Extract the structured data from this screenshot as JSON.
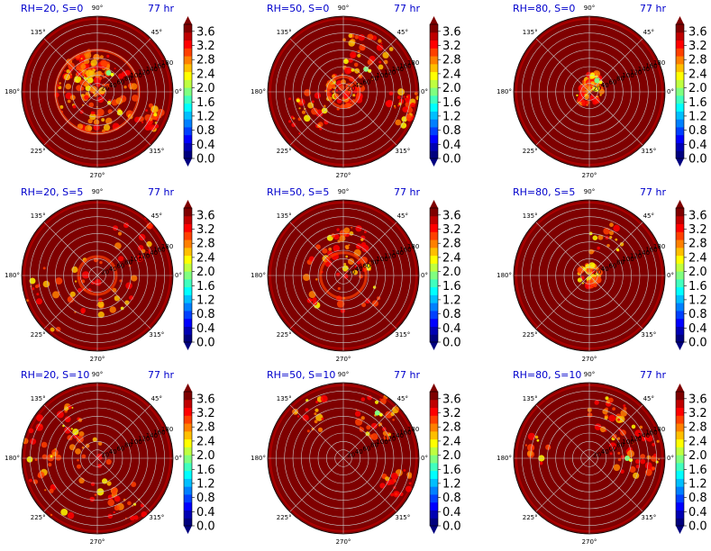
{
  "colors": {
    "title": "#0000cc",
    "background": "#7f0000",
    "grid": "#c8c8c8",
    "colormap": [
      "#00007f",
      "#0000b3",
      "#0000ff",
      "#0040ff",
      "#0080ff",
      "#00bfff",
      "#00ffff",
      "#40ffbf",
      "#80ff80",
      "#bfff40",
      "#ffff00",
      "#ffbf00",
      "#ff8000",
      "#ff4000",
      "#ff0000",
      "#bf0000",
      "#7f0000"
    ]
  },
  "colorbar": {
    "ticks": [
      "0.0",
      "0.4",
      "0.8",
      "1.2",
      "1.6",
      "2.0",
      "2.4",
      "2.8",
      "3.2",
      "3.6"
    ],
    "vmin": 0.0,
    "vmax": 3.8
  },
  "angle_labels": [
    "0°",
    "45°",
    "90°",
    "135°",
    "180°",
    "225°",
    "270°",
    "315°"
  ],
  "radial_ticks": [
    "20",
    "40",
    "60",
    "80",
    "100",
    "120",
    "140",
    "160",
    "180"
  ],
  "chart_data": [
    {
      "type": "heatmap",
      "title_left": "RH=20, S=0",
      "title_right": "77 hr",
      "projection": "polar",
      "rlim": [
        0,
        180
      ],
      "grid": true
    },
    {
      "type": "heatmap",
      "title_left": "RH=50, S=0",
      "title_right": "77 hr",
      "projection": "polar",
      "rlim": [
        0,
        180
      ],
      "grid": true
    },
    {
      "type": "heatmap",
      "title_left": "RH=80, S=0",
      "title_right": "77 hr",
      "projection": "polar",
      "rlim": [
        0,
        180
      ],
      "grid": true
    },
    {
      "type": "heatmap",
      "title_left": "RH=20, S=5",
      "title_right": "77 hr",
      "projection": "polar",
      "rlim": [
        0,
        180
      ],
      "grid": true
    },
    {
      "type": "heatmap",
      "title_left": "RH=50, S=5",
      "title_right": "77 hr",
      "projection": "polar",
      "rlim": [
        0,
        180
      ],
      "grid": true
    },
    {
      "type": "heatmap",
      "title_left": "RH=80, S=5",
      "title_right": "77 hr",
      "projection": "polar",
      "rlim": [
        0,
        180
      ],
      "grid": true
    },
    {
      "type": "heatmap",
      "title_left": "RH=20, S=10",
      "title_right": "77 hr",
      "projection": "polar",
      "rlim": [
        0,
        180
      ],
      "grid": true
    },
    {
      "type": "heatmap",
      "title_left": "RH=50, S=10",
      "title_right": "77 hr",
      "projection": "polar",
      "rlim": [
        0,
        180
      ],
      "grid": true
    },
    {
      "type": "heatmap",
      "title_left": "RH=80, S=10",
      "title_right": "77 hr",
      "projection": "polar",
      "rlim": [
        0,
        180
      ],
      "grid": true
    }
  ]
}
